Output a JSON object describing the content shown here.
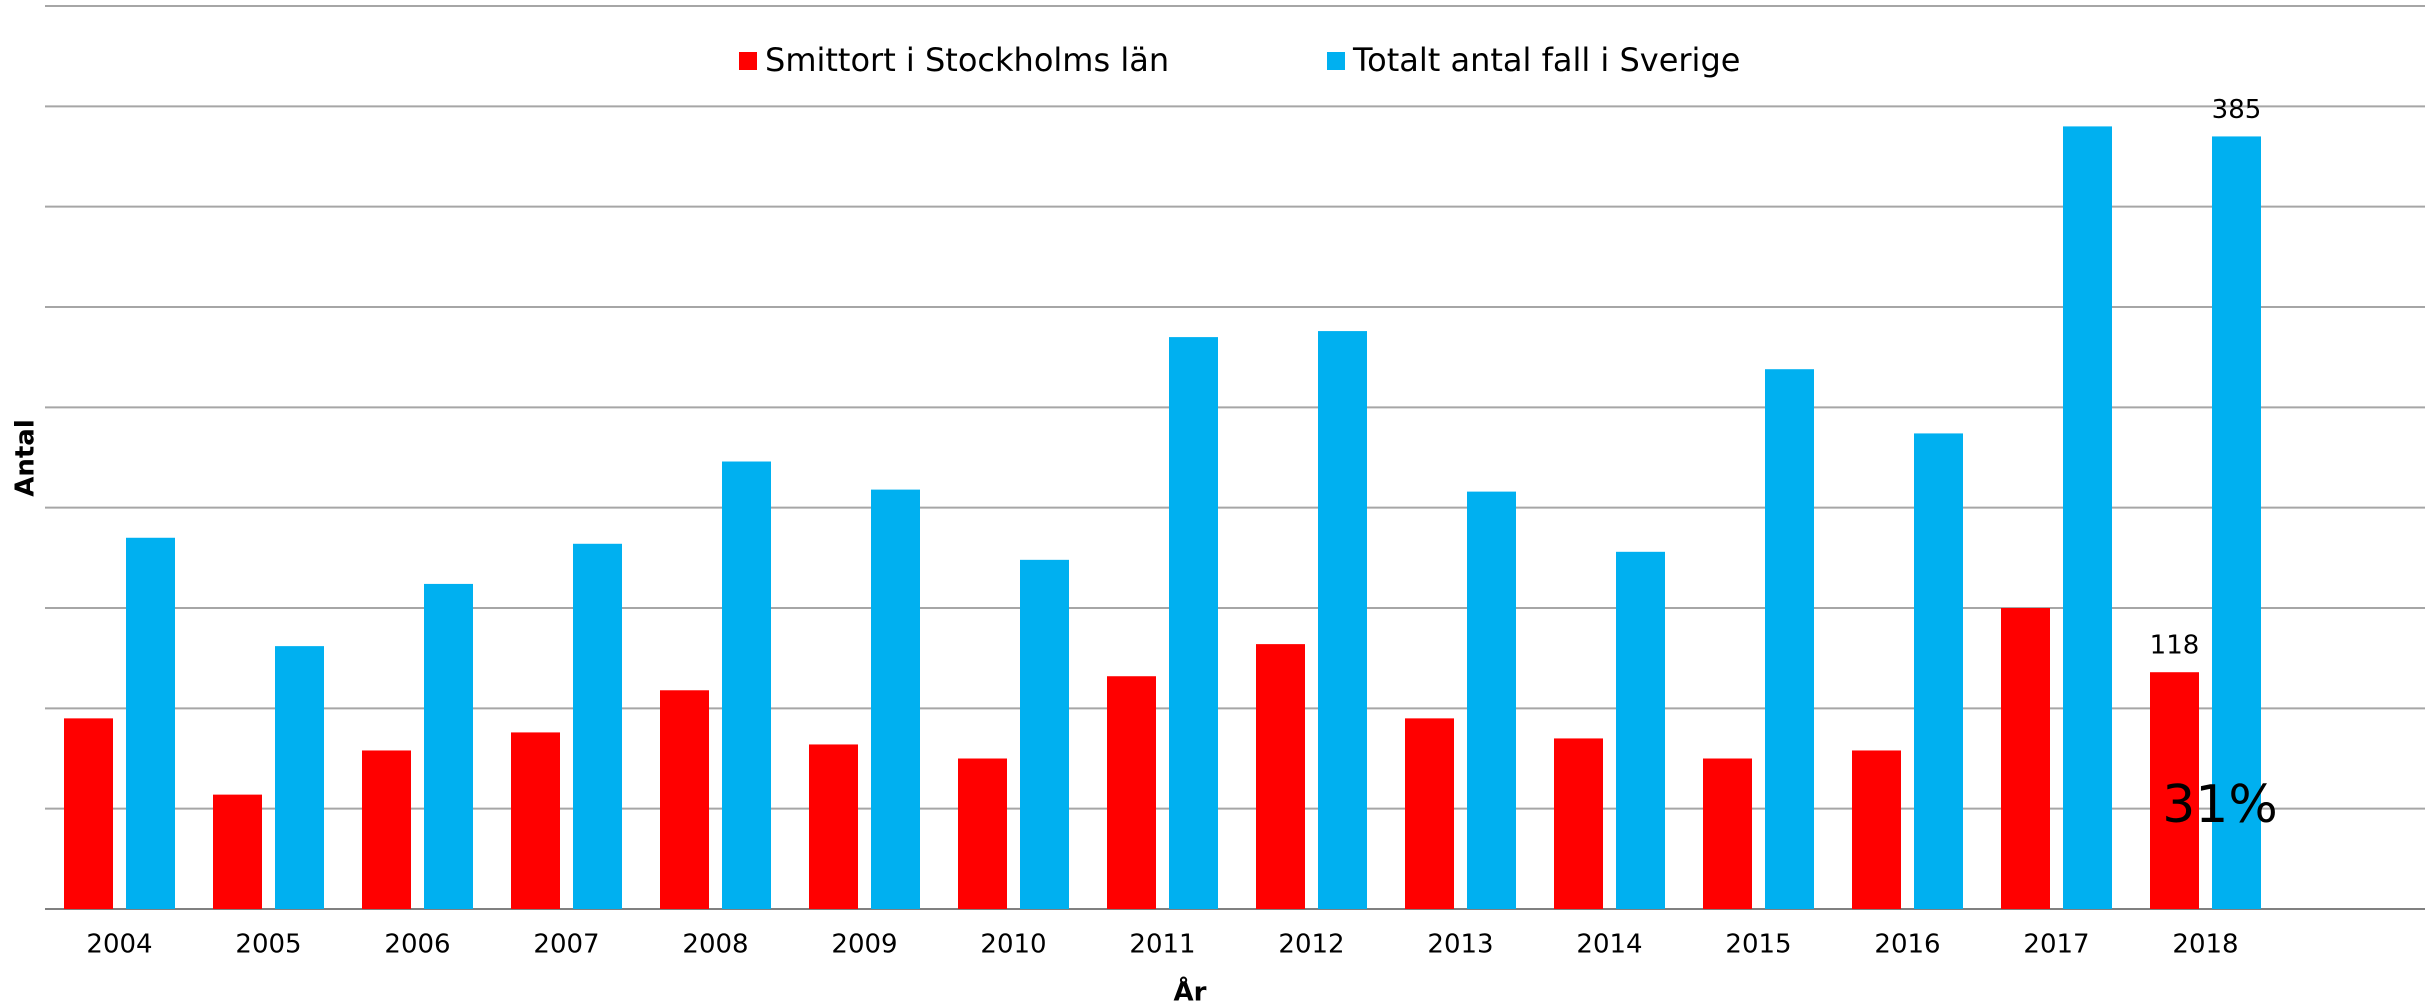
{
  "chart_data": {
    "type": "bar",
    "categories": [
      "2004",
      "2005",
      "2006",
      "2007",
      "2008",
      "2009",
      "2010",
      "2011",
      "2012",
      "2013",
      "2014",
      "2015",
      "2016",
      "2017",
      "2018"
    ],
    "series": [
      {
        "name": "Smittort i Stockholms län",
        "color": "#ff0000",
        "values": [
          95,
          57,
          79,
          88,
          109,
          82,
          75,
          116,
          132,
          95,
          85,
          75,
          79,
          150,
          118
        ],
        "value_labels": [
          null,
          null,
          null,
          null,
          null,
          null,
          null,
          null,
          null,
          null,
          null,
          null,
          null,
          null,
          "118"
        ]
      },
      {
        "name": "Totalt antal fall i Sverige",
        "color": "#00b0f0",
        "values": [
          185,
          131,
          162,
          182,
          223,
          209,
          174,
          285,
          288,
          208,
          178,
          269,
          237,
          390,
          385
        ],
        "value_labels": [
          null,
          null,
          null,
          null,
          null,
          null,
          null,
          null,
          null,
          null,
          null,
          null,
          null,
          null,
          "385"
        ]
      }
    ],
    "xlabel": "År",
    "ylabel": "Antal",
    "annotation": "31%",
    "ylim": [
      0,
      450
    ],
    "yticks": [
      0,
      50,
      100,
      150,
      200,
      250,
      300,
      350,
      400,
      450
    ],
    "grid": true,
    "legend": "top"
  }
}
